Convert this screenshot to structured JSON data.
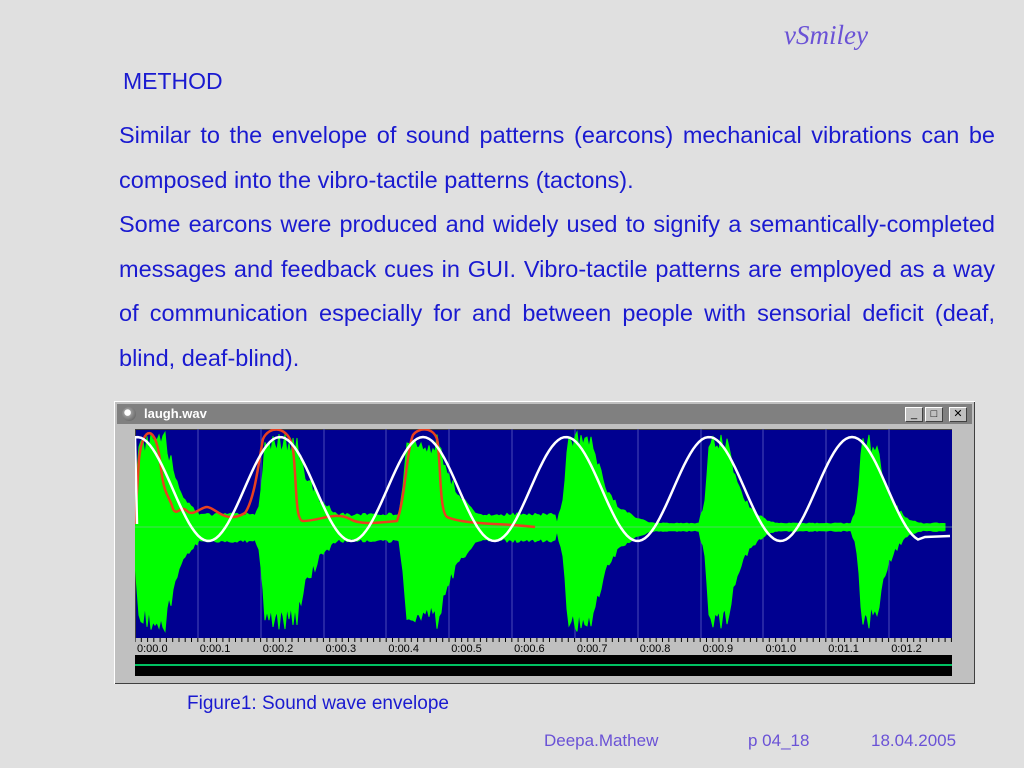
{
  "brand": "vSmiley",
  "heading": "METHOD",
  "paragraphs": [
    "Similar to the envelope of sound patterns (earcons) mechanical vibrations can be composed into the vibro-tactile patterns (tactons).",
    "Some earcons were produced and widely used to signify a semantically-completed messages and feedback cues in GUI. Vibro-tactile patterns are employed as a way of communication especially for and between people with sensorial deficit (deaf, blind, deaf-blind)."
  ],
  "window": {
    "title": "laugh.wav",
    "minimize_icon": "minimize-icon",
    "maximize_icon": "maximize-icon",
    "close_icon": "close-icon",
    "minimize_glyph": "_",
    "maximize_glyph": "□",
    "close_glyph": "✕"
  },
  "timeline": {
    "labels": [
      "0:00.0",
      "0:00.1",
      "0:00.2",
      "0:00.3",
      "0:00.4",
      "0:00.5",
      "0:00.6",
      "0:00.7",
      "0:00.8",
      "0:00.9",
      "0:01.0",
      "0:01.1",
      "0:01.2"
    ]
  },
  "colors": {
    "background": "#e0e0e0",
    "text": "#1a1ad0",
    "brand": "#6a52d6",
    "waveform": "#00ff00",
    "plot_background": "#000090",
    "envelope_red": "#e84020",
    "envelope_white": "#ffffff"
  },
  "caption": "Figure1: Sound wave envelope",
  "footer": {
    "author": "Deepa.Mathew",
    "page": "p 04_18",
    "date": "18.04.2005"
  }
}
